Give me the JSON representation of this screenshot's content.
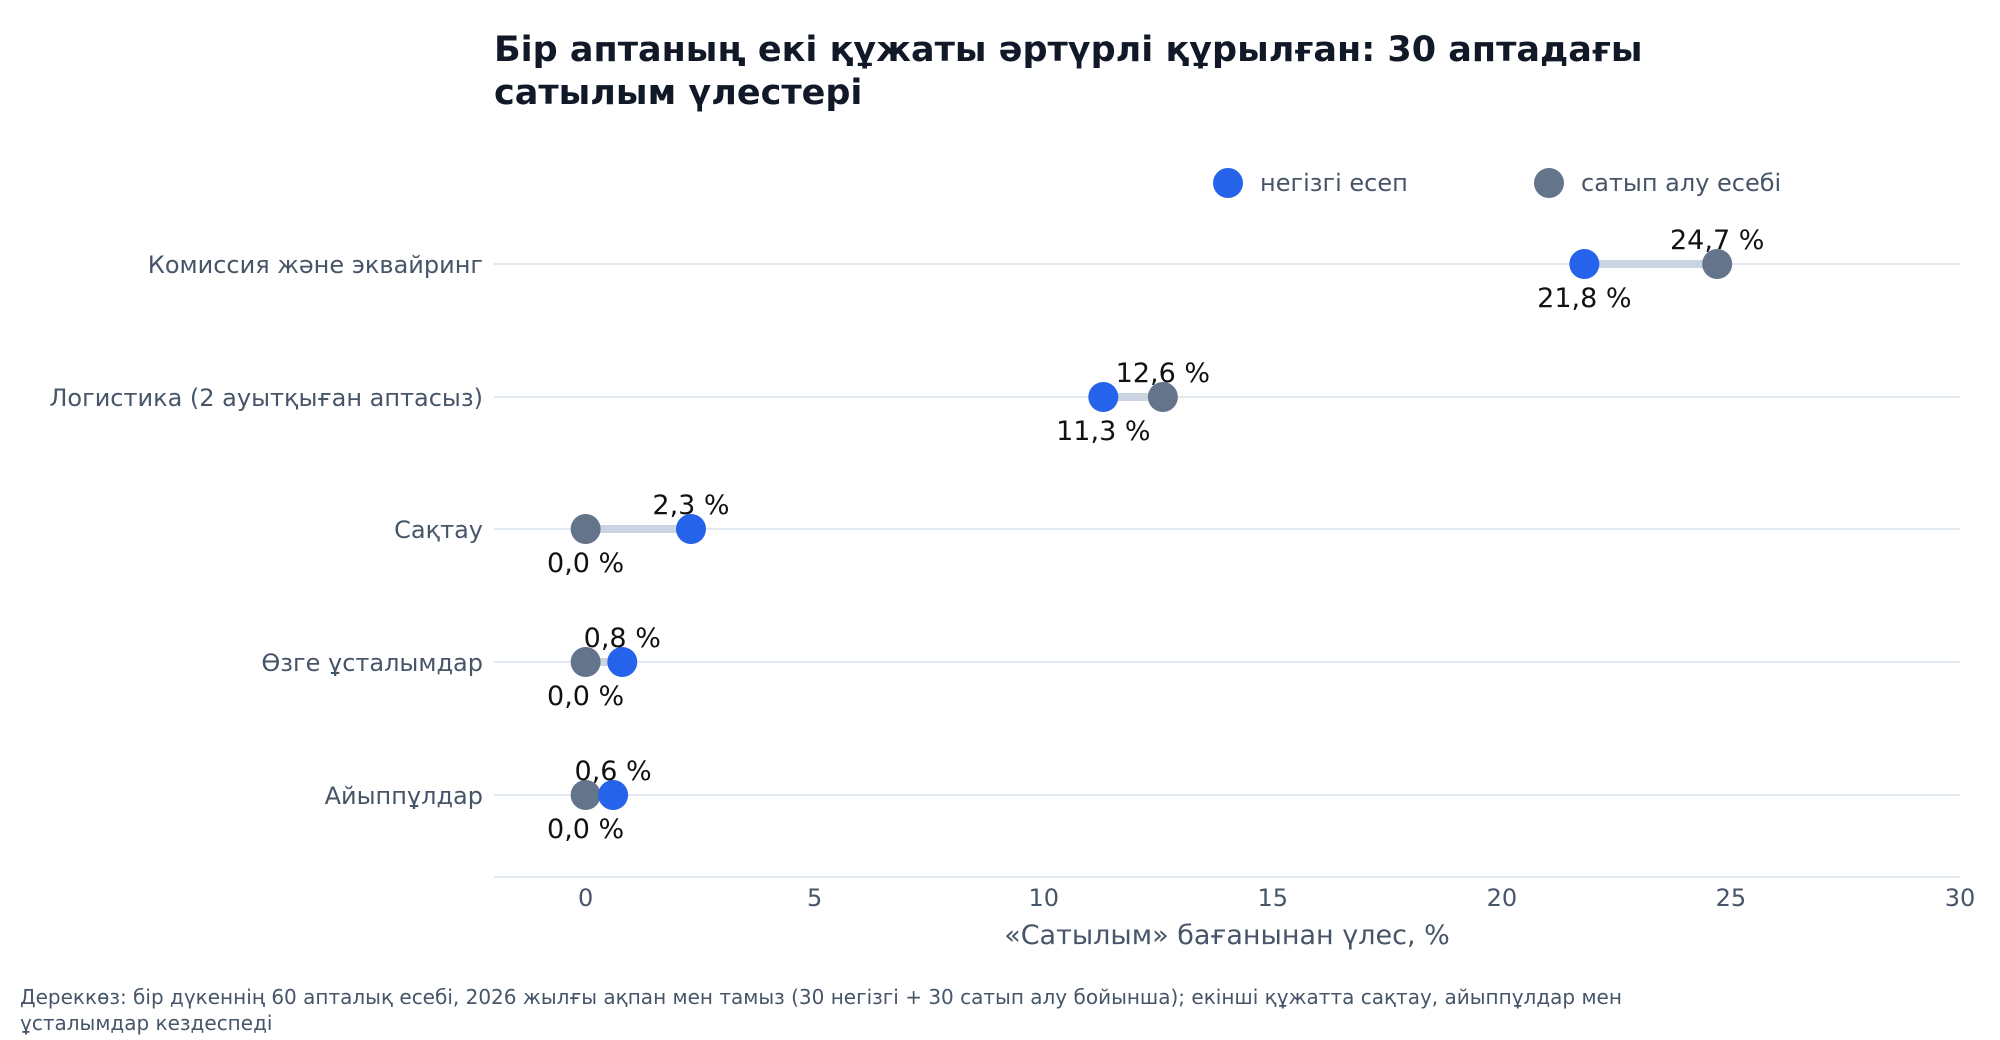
{
  "chart_data": {
    "type": "scatter",
    "subtype": "dumbbell",
    "title_lines": [
      "Бір аптаның екі құжаты әртүрлі құрылған: 30 аптадағы",
      "сатылым үлестері"
    ],
    "xlabel": "«Сатылым» бағанынан үлес, %",
    "xlim": [
      -2,
      30
    ],
    "xticks": [
      0,
      5,
      10,
      15,
      20,
      25,
      30
    ],
    "xtick_labels": [
      "0",
      "5",
      "10",
      "15",
      "20",
      "25",
      "30"
    ],
    "grid": "horizontal lines per category",
    "legend_position": "top-right",
    "categories": [
      "Комиссия және эквайринг",
      "Логистика (2 ауытқыған аптасыз)",
      "Сақтау",
      "Өзге ұсталымдар",
      "Айыппұлдар"
    ],
    "series": [
      {
        "name": "негізгі есеп",
        "color": "#2563eb",
        "values": [
          21.8,
          11.3,
          2.3,
          0.8,
          0.6
        ],
        "labels": [
          "21,8 %",
          "11,3 %",
          "2,3 %",
          "0,8 %",
          "0,6 %"
        ]
      },
      {
        "name": "сатып алу есебі",
        "color": "#64748b",
        "values": [
          24.7,
          12.6,
          0.0,
          0.0,
          0.0
        ],
        "labels": [
          "24,7 %",
          "12,6 %",
          "0,0 %",
          "0,0 %",
          "0,0 %"
        ]
      }
    ],
    "connector_color": "#cbd5e1",
    "gridline_color": "#e2e8f0",
    "footnote_lines": [
      "Дереккөз: бір дүкеннің 60 апталық есебі, 2026 жылғы ақпан мен тамыз (30 негізгі + 30 сатып алу бойынша); екінші құжатта сақтау, айыппұлдар мен",
      "ұсталымдар кездеспеді"
    ]
  }
}
